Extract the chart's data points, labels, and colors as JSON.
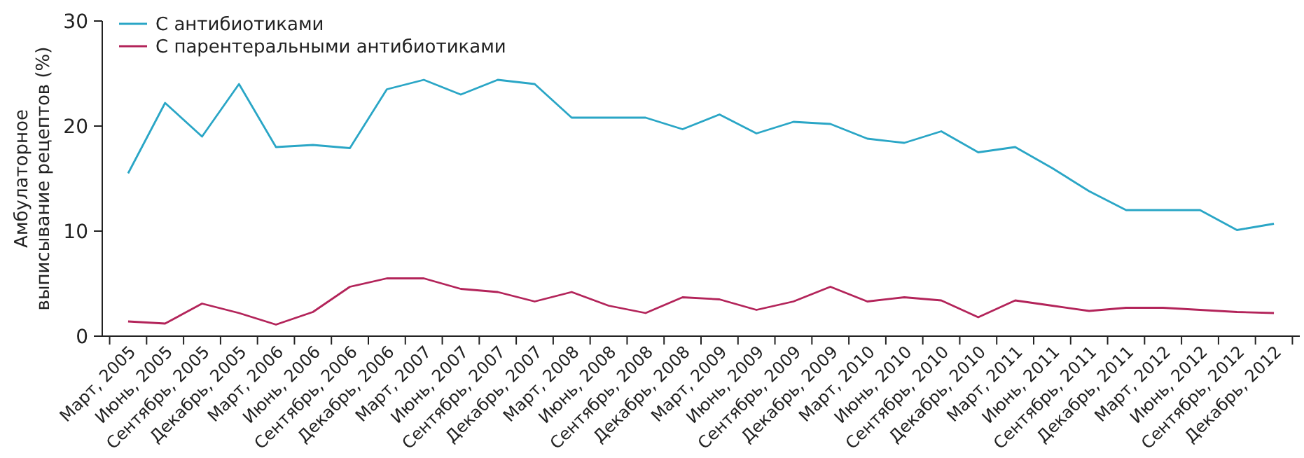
{
  "chart_data": {
    "type": "line",
    "ylabel": "Амбулаторное выписывание рецептов (%)",
    "categories": [
      "Март, 2005",
      "Июнь, 2005",
      "Сентябрь, 2005",
      "Декабрь, 2005",
      "Март, 2006",
      "Июнь, 2006",
      "Сентябрь, 2006",
      "Декабрь, 2006",
      "Март, 2007",
      "Июнь, 2007",
      "Сентябрь, 2007",
      "Декабрь, 2007",
      "Март, 2008",
      "Июнь, 2008",
      "Сентябрь, 2008",
      "Декабрь, 2008",
      "Март, 2009",
      "Июнь, 2009",
      "Сентябрь, 2009",
      "Декабрь, 2009",
      "Март, 2010",
      "Июнь, 2010",
      "Сентябрь, 2010",
      "Декабрь, 2010",
      "Март, 2011",
      "Июнь, 2011",
      "Сентябрь, 2011",
      "Декабрь, 2011",
      "Март, 2012",
      "Июнь, 2012",
      "Сентябрь, 2012",
      "Декабрь, 2012"
    ],
    "series": [
      {
        "name": "С антибиотиками",
        "color": "#2aa6c6",
        "values": [
          15.5,
          22.2,
          19,
          24,
          18,
          18.2,
          17.9,
          23.5,
          24.4,
          23,
          24.4,
          24,
          20.8,
          20.8,
          20.8,
          19.7,
          21.1,
          19.3,
          20.4,
          20.2,
          18.8,
          18.4,
          19.5,
          17.5,
          18,
          16,
          13.8,
          12,
          12,
          12,
          10.1,
          10.7
        ]
      },
      {
        "name": "С парентеральными антибиотиками",
        "color": "#b3245a",
        "values": [
          1.4,
          1.2,
          3.1,
          2.2,
          1.1,
          2.3,
          4.7,
          5.5,
          5.5,
          4.5,
          4.2,
          3.3,
          4.2,
          2.9,
          2.2,
          3.7,
          3.5,
          2.5,
          3.3,
          4.7,
          3.3,
          3.7,
          3.4,
          1.8,
          3.4,
          2.9,
          2.4,
          2.7,
          2.7,
          2.5,
          2.3,
          2.2
        ]
      }
    ],
    "ylim": [
      0,
      30
    ],
    "yticks": [
      0,
      10,
      20,
      30
    ],
    "grid": false,
    "legend": "top left",
    "marker": "none",
    "line_style": "solid"
  }
}
